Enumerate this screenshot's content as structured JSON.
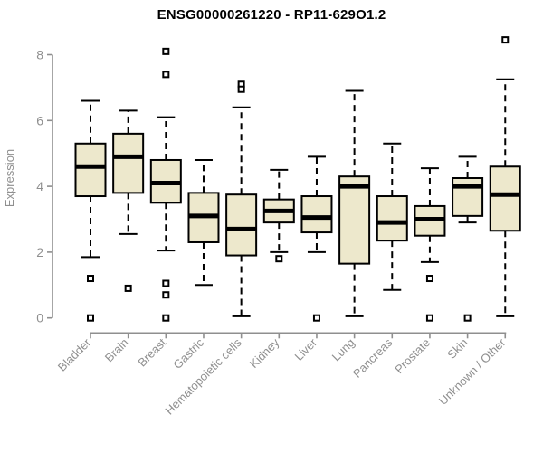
{
  "page": {
    "background": "#ffffff"
  },
  "chart_data": {
    "type": "boxplot",
    "title": "ENSG00000261220 - RP11-629O1.2",
    "ylabel": "Expression",
    "xlabel": "",
    "ylim": [
      0,
      8.6
    ],
    "yticks": [
      0,
      2,
      4,
      6,
      8
    ],
    "grid": false,
    "legend": "none",
    "categories": [
      "Bladder",
      "Brain",
      "Breast",
      "Gastric",
      "Hematopoietic cells",
      "Kidney",
      "Liver",
      "Lung",
      "Pancreas",
      "Prostate",
      "Skin",
      "Unknown / Other"
    ],
    "series": [
      {
        "name": "Bladder",
        "whisker_low": 1.85,
        "q1": 3.7,
        "median": 4.6,
        "q3": 5.3,
        "whisker_high": 6.6,
        "outliers": [
          1.2,
          0
        ]
      },
      {
        "name": "Brain",
        "whisker_low": 2.55,
        "q1": 3.8,
        "median": 4.9,
        "q3": 5.6,
        "whisker_high": 6.3,
        "outliers": [
          0.9
        ]
      },
      {
        "name": "Breast",
        "whisker_low": 2.05,
        "q1": 3.5,
        "median": 4.1,
        "q3": 4.8,
        "whisker_high": 6.1,
        "outliers": [
          8.1,
          7.4,
          1.05,
          0.7,
          0
        ]
      },
      {
        "name": "Gastric",
        "whisker_low": 1.0,
        "q1": 2.3,
        "median": 3.1,
        "q3": 3.8,
        "whisker_high": 4.8,
        "outliers": []
      },
      {
        "name": "Hematopoietic cells",
        "whisker_low": 0.05,
        "q1": 1.9,
        "median": 2.7,
        "q3": 3.75,
        "whisker_high": 6.4,
        "outliers": [
          7.1,
          6.95
        ]
      },
      {
        "name": "Kidney",
        "whisker_low": 2.0,
        "q1": 2.9,
        "median": 3.25,
        "q3": 3.6,
        "whisker_high": 4.5,
        "outliers": [
          1.8
        ]
      },
      {
        "name": "Liver",
        "whisker_low": 2.0,
        "q1": 2.6,
        "median": 3.05,
        "q3": 3.7,
        "whisker_high": 4.9,
        "outliers": [
          0
        ]
      },
      {
        "name": "Lung",
        "whisker_low": 0.05,
        "q1": 1.65,
        "median": 4.0,
        "q3": 4.3,
        "whisker_high": 6.9,
        "outliers": []
      },
      {
        "name": "Pancreas",
        "whisker_low": 0.85,
        "q1": 2.35,
        "median": 2.9,
        "q3": 3.7,
        "whisker_high": 5.3,
        "outliers": []
      },
      {
        "name": "Prostate",
        "whisker_low": 1.7,
        "q1": 2.5,
        "median": 3.0,
        "q3": 3.4,
        "whisker_high": 4.55,
        "outliers": [
          1.2,
          0
        ]
      },
      {
        "name": "Skin",
        "whisker_low": 2.9,
        "q1": 3.1,
        "median": 4.0,
        "q3": 4.25,
        "whisker_high": 4.9,
        "outliers": [
          0
        ]
      },
      {
        "name": "Unknown / Other",
        "whisker_low": 0.05,
        "q1": 2.65,
        "median": 3.75,
        "q3": 4.6,
        "whisker_high": 7.25,
        "outliers": [
          8.45
        ]
      }
    ],
    "colors": {
      "box_fill": "#ede8cc",
      "box_border": "#000000",
      "median": "#000000",
      "whisker": "#000000",
      "axis": "#8f8f8f",
      "tick_label": "#8f8f8f",
      "title": "#000000"
    }
  }
}
